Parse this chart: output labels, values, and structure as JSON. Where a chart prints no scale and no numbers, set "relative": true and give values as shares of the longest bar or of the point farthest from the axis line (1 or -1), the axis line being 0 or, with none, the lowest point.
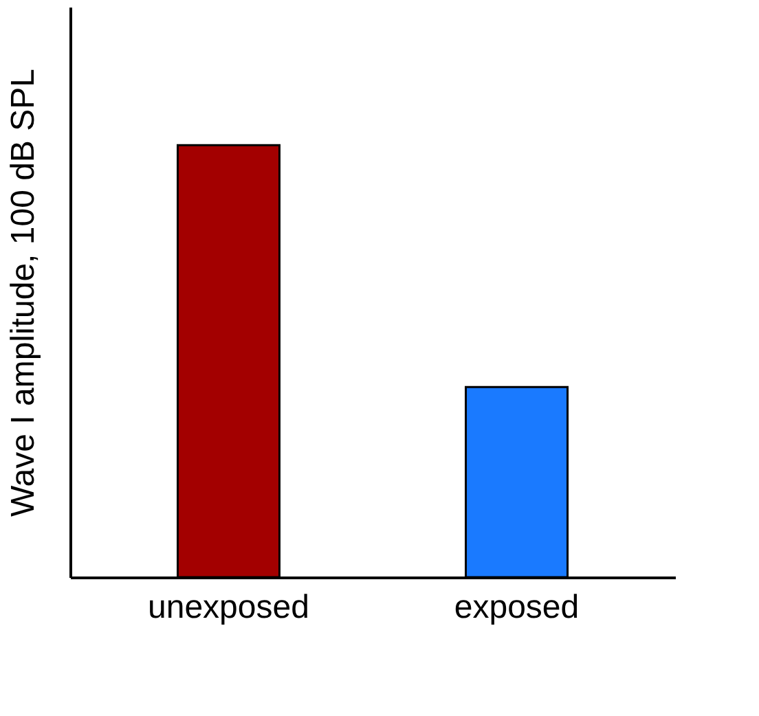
{
  "chart_data": {
    "type": "bar",
    "relative": true,
    "ylabel": "Wave I amplitude, 100 dB SPL",
    "categories": [
      "unexposed",
      "exposed"
    ],
    "values": [
      1,
      0.44
    ],
    "colors": [
      "#a30000",
      "#1a7aff"
    ],
    "grid": false
  }
}
